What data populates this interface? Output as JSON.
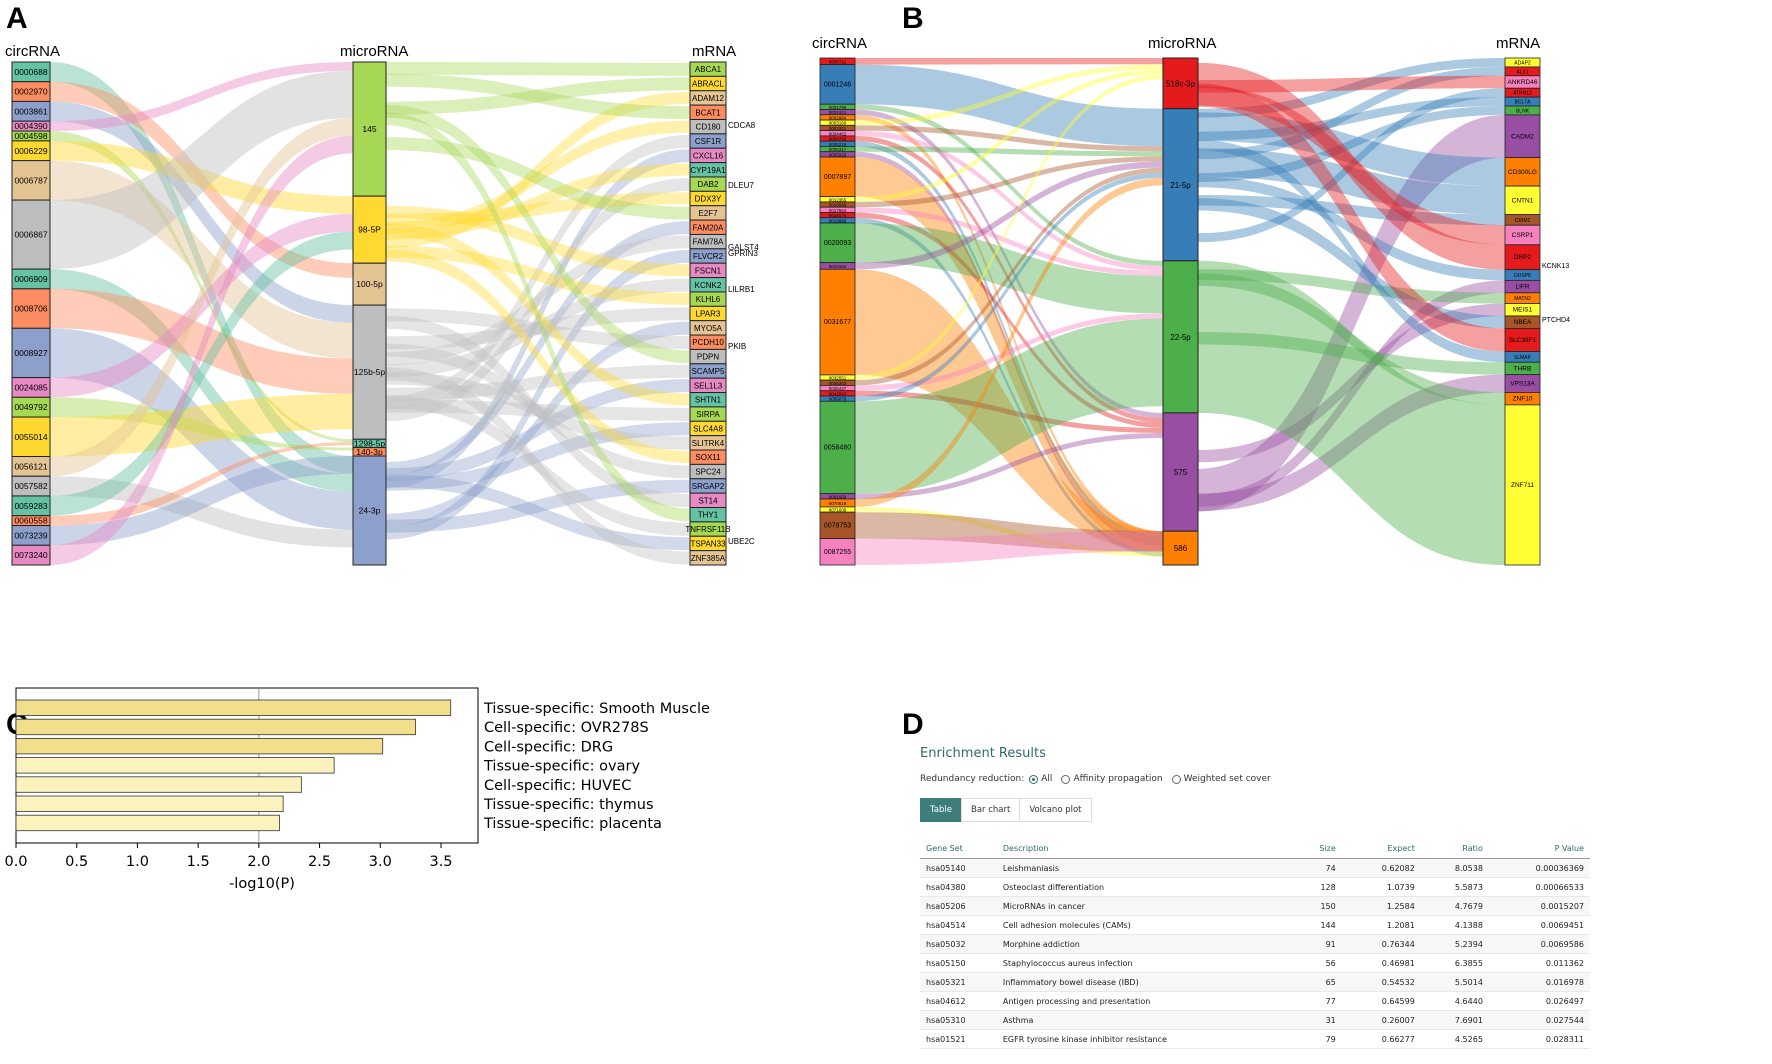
{
  "panel_letters": {
    "a": "A",
    "b": "B",
    "c": "C",
    "d": "D"
  },
  "colors": {
    "green": "#7fc97f",
    "orange": "#fdc086",
    "grey": "#bebebe",
    "blue": "#8da0cb",
    "yellow": "#ffd92f",
    "salmon": "#fc8d62",
    "teal": "#66c2a5",
    "pink": "#e78ac3",
    "lime": "#a6d854",
    "tan": "#e5c494",
    "bar_dark": "#f2df8c",
    "bar_light": "#fbf2bd"
  },
  "chart_data": [
    {
      "type": "sankey",
      "panel": "A",
      "column_titles": [
        "circRNA",
        "microRNA",
        "mRNA"
      ],
      "circRNA": [
        {
          "label": "0000688",
          "w": 2
        },
        {
          "label": "0002970",
          "w": 2
        },
        {
          "label": "0003861",
          "w": 2
        },
        {
          "label": "0004390",
          "w": 1
        },
        {
          "label": "0004598",
          "w": 1
        },
        {
          "label": "0006229",
          "w": 2
        },
        {
          "label": "0006787",
          "w": 4
        },
        {
          "label": "0006867",
          "w": 7
        },
        {
          "label": "0006909",
          "w": 2
        },
        {
          "label": "0008706",
          "w": 4
        },
        {
          "label": "0008927",
          "w": 5
        },
        {
          "label": "0024085",
          "w": 2
        },
        {
          "label": "0049792",
          "w": 2
        },
        {
          "label": "0055014",
          "w": 4
        },
        {
          "label": "0056121",
          "w": 2
        },
        {
          "label": "0057582",
          "w": 2
        },
        {
          "label": "0059283",
          "w": 2
        },
        {
          "label": "0060558",
          "w": 1
        },
        {
          "label": "0073239",
          "w": 2
        },
        {
          "label": "0073240",
          "w": 2
        }
      ],
      "microRNA": [
        {
          "label": "145",
          "w": 16
        },
        {
          "label": "98-5P",
          "w": 8
        },
        {
          "label": "100-5p",
          "w": 5
        },
        {
          "label": "125b-5p",
          "w": 16
        },
        {
          "label": "1298-5p",
          "w": 1
        },
        {
          "label": "140-3p",
          "w": 1
        },
        {
          "label": "24-3p",
          "w": 13
        }
      ],
      "mRNA": [
        {
          "label": "ABCA1"
        },
        {
          "label": "ABRACL"
        },
        {
          "label": "ADAM12"
        },
        {
          "label": "BCAT1"
        },
        {
          "label": "CD180"
        },
        {
          "label": "CSF1R"
        },
        {
          "label": "CXCL16"
        },
        {
          "label": "CYP19A1"
        },
        {
          "label": "DAB2"
        },
        {
          "label": "DDX3Y"
        },
        {
          "label": "E2F7"
        },
        {
          "label": "FAM20A"
        },
        {
          "label": "FAM78A"
        },
        {
          "label": "FLVCR2"
        },
        {
          "label": "FSCN1"
        },
        {
          "label": "KCNK2"
        },
        {
          "label": "KLHL6"
        },
        {
          "label": "LPAR3"
        },
        {
          "label": "MYO5A"
        },
        {
          "label": "PCDH10"
        },
        {
          "label": "PDPN"
        },
        {
          "label": "SCAMP5"
        },
        {
          "label": "SEL1L3"
        },
        {
          "label": "SHTN1"
        },
        {
          "label": "SIRPA"
        },
        {
          "label": "SLC4A8"
        },
        {
          "label": "SLITRK4"
        },
        {
          "label": "SOX11"
        },
        {
          "label": "SPC24"
        },
        {
          "label": "SRGAP2"
        },
        {
          "label": "ST14"
        },
        {
          "label": "THY1"
        },
        {
          "label": "TNFRSF11B"
        },
        {
          "label": "TSPAN33"
        },
        {
          "label": "ZNF385A"
        }
      ],
      "side_labels": [
        "CDCA8",
        "DLEU7",
        "GALST4",
        "GPRIN3",
        "LILRB1",
        "PKIB",
        "UBE2C"
      ]
    },
    {
      "type": "sankey",
      "panel": "B",
      "column_titles": [
        "circRNA",
        "microRNA",
        "mRNA"
      ],
      "circRNA": [
        {
          "label": "0000711",
          "w": 0.5
        },
        {
          "label": "0001246",
          "w": 3
        },
        {
          "label": "0001798",
          "w": 0.4
        },
        {
          "label": "0002441",
          "w": 0.4
        },
        {
          "label": "0002984",
          "w": 0.4
        },
        {
          "label": "0003160",
          "w": 0.4
        },
        {
          "label": "0003321",
          "w": 0.4
        },
        {
          "label": "0004462",
          "w": 0.4
        },
        {
          "label": "0004792",
          "w": 0.4
        },
        {
          "label": "0005219",
          "w": 0.4
        },
        {
          "label": "0005317",
          "w": 0.4
        },
        {
          "label": "0005925",
          "w": 0.4
        },
        {
          "label": "0007897",
          "w": 3
        },
        {
          "label": "0012365",
          "w": 0.4
        },
        {
          "label": "0016588",
          "w": 0.4
        },
        {
          "label": "0017664",
          "w": 0.4
        },
        {
          "label": "0018175",
          "w": 0.4
        },
        {
          "label": "0019866",
          "w": 0.4
        },
        {
          "label": "0020093",
          "w": 3
        },
        {
          "label": "0024162",
          "w": 0.5
        },
        {
          "label": "0031677",
          "w": 8
        },
        {
          "label": "0032551",
          "w": 0.4
        },
        {
          "label": "0035343",
          "w": 0.4
        },
        {
          "label": "0035437",
          "w": 0.4
        },
        {
          "label": "0041542",
          "w": 0.4
        },
        {
          "label": "0056079",
          "w": 0.4
        },
        {
          "label": "0058480",
          "w": 7
        },
        {
          "label": "0061669",
          "w": 0.4
        },
        {
          "label": "0070618",
          "w": 0.6
        },
        {
          "label": "0071608",
          "w": 0.4
        },
        {
          "label": "0079753",
          "w": 2
        },
        {
          "label": "0087255",
          "w": 2
        }
      ],
      "microRNA": [
        {
          "label": "518c-3p",
          "w": 3
        },
        {
          "label": "21-5p",
          "w": 9
        },
        {
          "label": "22-5p",
          "w": 9
        },
        {
          "label": "575",
          "w": 7
        },
        {
          "label": "586",
          "w": 2
        }
      ],
      "mRNA": [
        {
          "label": "ADAP2",
          "w": 0.5
        },
        {
          "label": "ALX1",
          "w": 0.5
        },
        {
          "label": "ANKRD46",
          "w": 0.7
        },
        {
          "label": "ATRN12",
          "w": 0.5
        },
        {
          "label": "BCL7A",
          "w": 0.5
        },
        {
          "label": "BLNK",
          "w": 0.5
        },
        {
          "label": "CADM2",
          "w": 2.4
        },
        {
          "label": "CD300LG",
          "w": 1.6
        },
        {
          "label": "CNTN1",
          "w": 1.6
        },
        {
          "label": "CRIM1",
          "w": 0.6
        },
        {
          "label": "CSRP1",
          "w": 1.1
        },
        {
          "label": "DRP2",
          "w": 1.4
        },
        {
          "label": "DUSP8",
          "w": 0.6
        },
        {
          "label": "LIFR",
          "w": 0.7
        },
        {
          "label": "MATN2",
          "w": 0.6
        },
        {
          "label": "MEIS1",
          "w": 0.7
        },
        {
          "label": "NBEA",
          "w": 0.7
        },
        {
          "label": "SLC39F1",
          "w": 1.3
        },
        {
          "label": "SLMAP",
          "w": 0.6
        },
        {
          "label": "THRB",
          "w": 0.7
        },
        {
          "label": "VPS13A",
          "w": 1
        },
        {
          "label": "ZNF10",
          "w": 0.7
        },
        {
          "label": "ZNF711",
          "w": 9
        }
      ],
      "side_labels": [
        "KCNK13",
        "PTCHD4"
      ]
    },
    {
      "type": "bar",
      "panel": "C",
      "orientation": "horizontal",
      "categories": [
        "Tissue-specific: Smooth Muscle",
        "Cell-specific: OVR278S",
        "Cell-specific: DRG",
        "Tissue-specific: ovary",
        "Cell-specific: HUVEC",
        "Tissue-specific: thymus",
        "Tissue-specific: placenta"
      ],
      "values": [
        3.58,
        3.29,
        3.02,
        2.62,
        2.35,
        2.2,
        2.17
      ],
      "xlabel": "-log10(P)",
      "xlim": [
        0,
        3.8
      ],
      "xticks": [
        "0.0",
        "0.5",
        "1.0",
        "1.5",
        "2.0",
        "2.5",
        "3.0",
        "3.5"
      ],
      "xtick_values": [
        0,
        0.5,
        1.0,
        1.5,
        2.0,
        2.5,
        3.0,
        3.5
      ],
      "threshold": 2.0
    },
    {
      "type": "table",
      "panel": "D",
      "title": "Enrichment Results",
      "redundancy_label": "Redundancy reduction:",
      "options": [
        "All",
        "Affinity propagation",
        "Weighted set cover"
      ],
      "tabs": [
        "Table",
        "Bar chart",
        "Volcano plot"
      ],
      "columns": [
        "Gene Set",
        "Description",
        "Size",
        "Expect",
        "Ratio",
        "P Value"
      ],
      "rows": [
        [
          "hsa05140",
          "Leishmaniasis",
          "74",
          "0.62082",
          "8.0538",
          "0.00036369"
        ],
        [
          "hsa04380",
          "Osteoclast differentiation",
          "128",
          "1.0739",
          "5.5873",
          "0.00066533"
        ],
        [
          "hsa05206",
          "MicroRNAs in cancer",
          "150",
          "1.2584",
          "4.7679",
          "0.0015207"
        ],
        [
          "hsa04514",
          "Cell adhesion molecules (CAMs)",
          "144",
          "1.2081",
          "4.1388",
          "0.0069451"
        ],
        [
          "hsa05032",
          "Morphine addiction",
          "91",
          "0.76344",
          "5.2394",
          "0.0069586"
        ],
        [
          "hsa05150",
          "Staphylococcus aureus infection",
          "56",
          "0.46981",
          "6.3855",
          "0.011362"
        ],
        [
          "hsa05321",
          "Inflammatory bowel disease (IBD)",
          "65",
          "0.54532",
          "5.5014",
          "0.016978"
        ],
        [
          "hsa04612",
          "Antigen processing and presentation",
          "77",
          "0.64599",
          "4.6440",
          "0.026497"
        ],
        [
          "hsa05310",
          "Asthma",
          "31",
          "0.26007",
          "7.6901",
          "0.027544"
        ],
        [
          "hsa01521",
          "EGFR tyrosine kinase inhibitor resistance",
          "79",
          "0.66277",
          "4.5265",
          "0.028311"
        ]
      ]
    }
  ]
}
